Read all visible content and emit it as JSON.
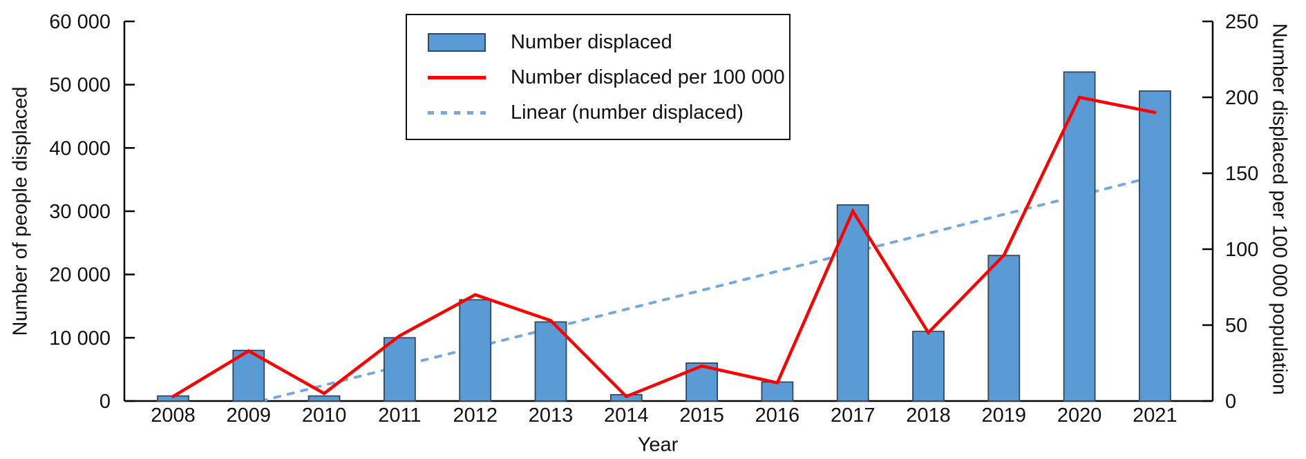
{
  "colors": {
    "bar_fill": "#5B9BD5",
    "bar_border": "#33475B",
    "red_line": "#FF0000",
    "trend_line": "#74A9DC",
    "axis": "#000000",
    "text": "#111111",
    "legend_border": "#111111",
    "background": "#FFFFFF"
  },
  "legend": {
    "items": [
      {
        "swatch": "bar-swatch",
        "label": "Number displaced"
      },
      {
        "swatch": "line-swatch",
        "label": "Number displaced per 100 000"
      },
      {
        "swatch": "dashed-line-swatch",
        "label": "Linear (number displaced)"
      }
    ]
  },
  "chart_data": {
    "type": "bar",
    "subtype": "combo bar + line, dual axis",
    "categories": [
      "2008",
      "2009",
      "2010",
      "2011",
      "2012",
      "2013",
      "2014",
      "2015",
      "2016",
      "2017",
      "2018",
      "2019",
      "2020",
      "2021"
    ],
    "series": [
      {
        "name": "Number displaced",
        "type": "bar",
        "axis": "left",
        "values": [
          800,
          8000,
          800,
          10000,
          16000,
          12500,
          1000,
          6000,
          3000,
          31000,
          11000,
          23000,
          52000,
          49000
        ]
      },
      {
        "name": "Number displaced per 100 000",
        "type": "line",
        "axis": "right",
        "values": [
          3,
          33,
          5,
          43,
          70,
          53,
          3,
          23,
          12,
          125,
          45,
          96,
          200,
          190
        ]
      },
      {
        "name": "Linear (number displaced)",
        "type": "linear-trendline",
        "axis": "left",
        "start_year": "2008",
        "start_value": -3500,
        "end_year": "2021",
        "end_value": 35500
      }
    ],
    "title": "",
    "xlabel": "Year",
    "ylabel_left": "Number of people displaced",
    "ylabel_right": "Number displaced per 100 000 population",
    "left_axis": {
      "min": 0,
      "max": 60000,
      "step": 10000,
      "tick_labels": [
        "0",
        "10 000",
        "20 000",
        "30 000",
        "40 000",
        "50 000",
        "60 000"
      ]
    },
    "right_axis": {
      "min": 0,
      "max": 250,
      "step": 50,
      "tick_labels": [
        "0",
        "50",
        "100",
        "150",
        "200",
        "250"
      ]
    },
    "grid": false,
    "legend_position": "top-center"
  }
}
